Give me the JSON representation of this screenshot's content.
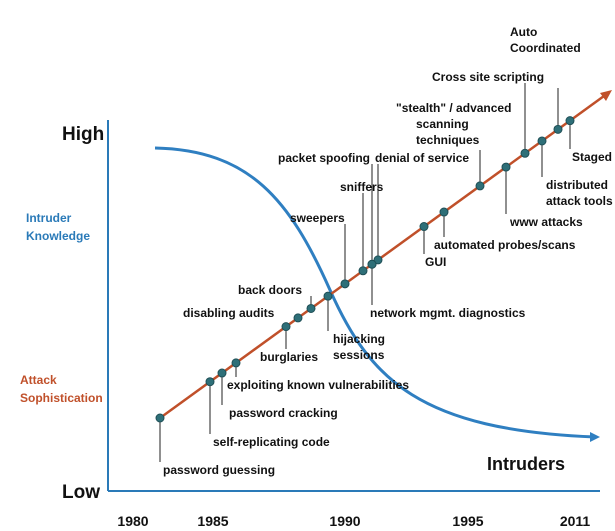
{
  "axis": {
    "high": "High",
    "low": "Low",
    "years": [
      "1980",
      "1985",
      "1990",
      "1995",
      "2011"
    ]
  },
  "side_labels": {
    "knowledge": [
      "Intruder",
      "Knowledge"
    ],
    "sophistication": [
      "Attack",
      "Sophistication"
    ]
  },
  "curve_label": "Intruders",
  "attacks": [
    [
      "password guessing"
    ],
    [
      "self-replicating code"
    ],
    [
      "password cracking"
    ],
    [
      "exploiting known vulnerabilities"
    ],
    [
      "burglaries"
    ],
    [
      "disabling audits"
    ],
    [
      "back doors"
    ],
    [
      "hijacking",
      "sessions"
    ],
    [
      "sweepers"
    ],
    [
      "sniffers"
    ],
    [
      "packet spoofing"
    ],
    [
      "denial of service"
    ],
    [
      "network mgmt. diagnostics"
    ],
    [
      "GUI"
    ],
    [
      "automated probes/scans"
    ],
    [
      "www attacks"
    ],
    [
      "\"stealth\" / advanced",
      "scanning",
      "techniques"
    ],
    [
      "Cross site scripting"
    ],
    [
      "Auto",
      "Coordinated"
    ],
    [
      "distributed",
      "attack tools"
    ],
    [
      "Staged"
    ]
  ]
}
